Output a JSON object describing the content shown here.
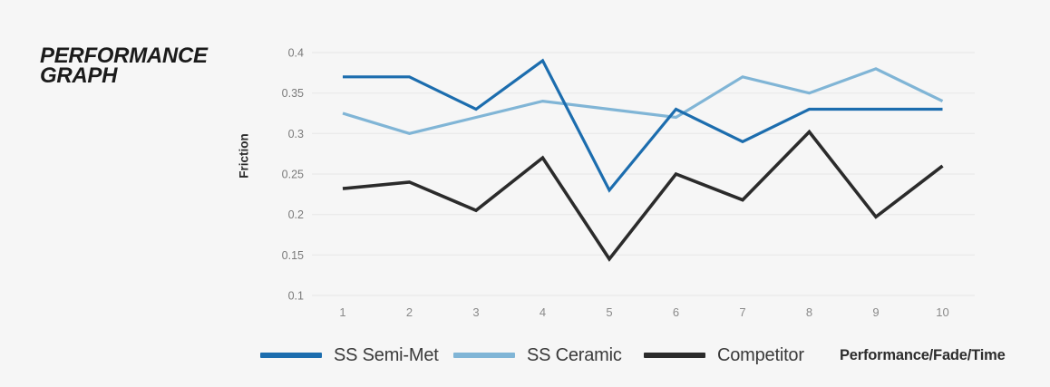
{
  "header": {
    "title_line1": "PERFORMANCE",
    "title_line2": "GRAPH"
  },
  "chart_data": {
    "type": "line",
    "title": "PERFORMANCE GRAPH",
    "xlabel": "",
    "ylabel": "Friction",
    "x": [
      1,
      2,
      3,
      4,
      5,
      6,
      7,
      8,
      9,
      10
    ],
    "ylim": [
      0.1,
      0.4
    ],
    "yticks": [
      0.4,
      0.35,
      0.3,
      0.25,
      0.2,
      0.15,
      0.1
    ],
    "ytick_labels": [
      "0.4",
      "0.35",
      "0.3",
      "0.25",
      "0.2",
      "0.15",
      "0.1"
    ],
    "grid": "horizontal-only",
    "legend_position": "bottom",
    "series": [
      {
        "name": "SS Semi-Met",
        "color": "#1c6dae",
        "values": [
          0.37,
          0.37,
          0.33,
          0.39,
          0.23,
          0.33,
          0.29,
          0.33,
          0.33,
          0.33
        ]
      },
      {
        "name": "SS Ceramic",
        "color": "#80b5d6",
        "values": [
          0.325,
          0.3,
          0.32,
          0.34,
          0.33,
          0.32,
          0.37,
          0.35,
          0.38,
          0.34
        ]
      },
      {
        "name": "Competitor",
        "color": "#2b2b2b",
        "values": [
          0.232,
          0.24,
          0.205,
          0.27,
          0.145,
          0.25,
          0.218,
          0.302,
          0.197,
          0.26
        ]
      }
    ],
    "footer_label": "Performance/Fade/Time",
    "background_color": "#f6f6f6",
    "gridline_color": "#e7e7e7"
  }
}
